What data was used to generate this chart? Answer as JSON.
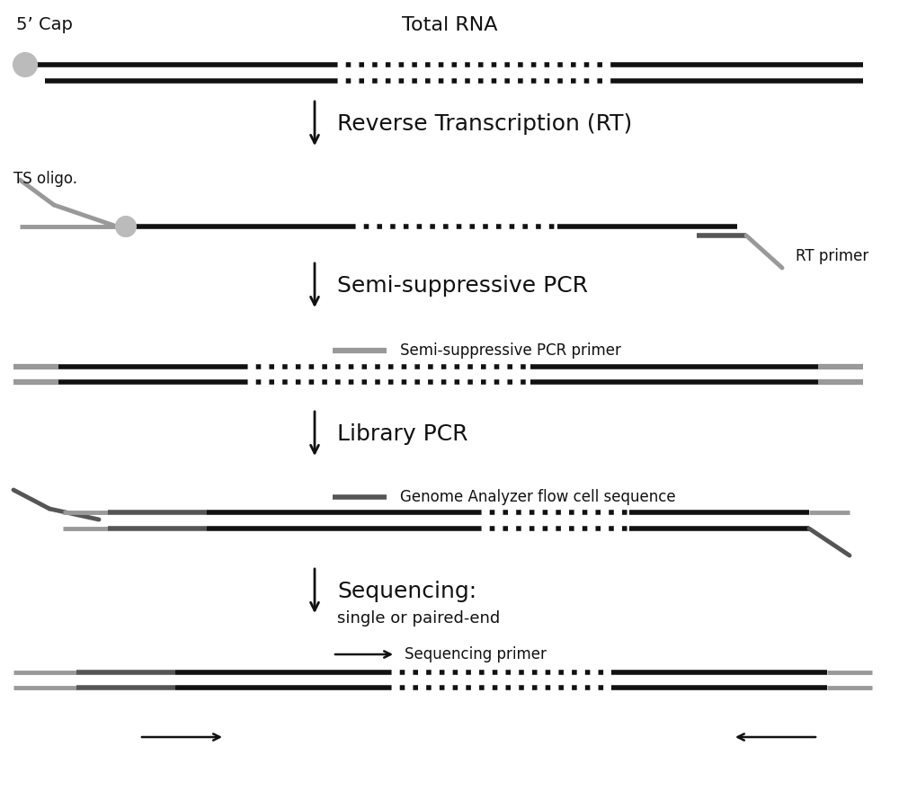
{
  "bg_color": "#ffffff",
  "line_color": "#111111",
  "gray_color": "#999999",
  "dark_gray": "#555555",
  "cap_color": "#bbbbbb",
  "cap_edge": "#888888",
  "step1_label": "5’ Cap",
  "step1_rna_label": "Total RNA",
  "step2_label": "Reverse Transcription (RT)",
  "step3_label": "Semi-suppressive PCR",
  "step4_label": "Library PCR",
  "step5_label_line1": "Sequencing:",
  "step5_label_line2": "single or paired-end",
  "ts_oligo_label": "TS oligo.",
  "rt_primer_label": "RT primer",
  "semi_pcr_primer_label": "Semi-suppressive PCR primer",
  "ga_seq_label": "Genome Analyzer flow cell sequence",
  "seq_primer_label": "Sequencing primer",
  "figsize": [
    10,
    8.8
  ],
  "dpi": 100
}
